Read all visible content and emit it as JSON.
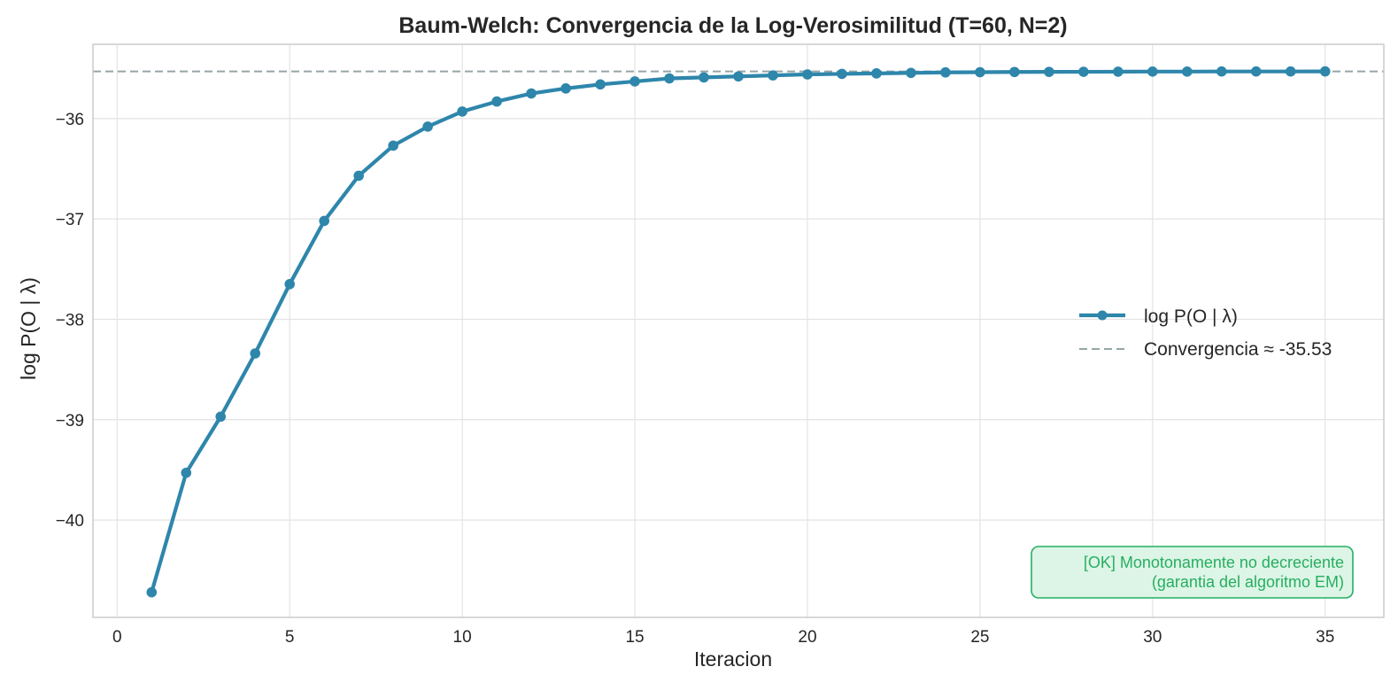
{
  "colors": {
    "series": "#2e86ab",
    "convergence_line": "#95a5a6",
    "annotation_text": "#27ae60",
    "annotation_bg": "#dcf5e6",
    "annotation_border": "#27ae60",
    "frame": "#cccccc",
    "grid": "#e3e3e3"
  },
  "chart_data": {
    "type": "line",
    "title": "Baum-Welch: Convergencia de la Log-Verosimilitud (T=60, N=2)",
    "xlabel": "Iteracion",
    "ylabel": "log P(O | λ)",
    "xlim": [
      -0.7,
      36.7
    ],
    "ylim": [
      -40.97,
      -35.26
    ],
    "xticks": [
      0,
      5,
      10,
      15,
      20,
      25,
      30,
      35
    ],
    "yticks": [
      -36,
      -37,
      -38,
      -39,
      -40
    ],
    "ytick_labels": [
      "−36",
      "−37",
      "−38",
      "−39",
      "−40"
    ],
    "grid": true,
    "legend_position": "center-right",
    "series": [
      {
        "name": "log P(O | λ)",
        "style": "line-with-markers",
        "x": [
          1,
          2,
          3,
          4,
          5,
          6,
          7,
          8,
          9,
          10,
          11,
          12,
          13,
          14,
          15,
          16,
          17,
          18,
          19,
          20,
          21,
          22,
          23,
          24,
          25,
          26,
          27,
          28,
          29,
          30,
          31,
          32,
          33,
          34,
          35
        ],
        "y": [
          -40.72,
          -39.53,
          -38.97,
          -38.34,
          -37.65,
          -37.02,
          -36.57,
          -36.27,
          -36.08,
          -35.93,
          -35.83,
          -35.75,
          -35.7,
          -35.66,
          -35.63,
          -35.6,
          -35.59,
          -35.58,
          -35.57,
          -35.56,
          -35.555,
          -35.55,
          -35.545,
          -35.54,
          -35.538,
          -35.536,
          -35.535,
          -35.534,
          -35.533,
          -35.532,
          -35.532,
          -35.531,
          -35.531,
          -35.531,
          -35.53
        ]
      }
    ],
    "reference_line": {
      "name": "Convergencia ≈ -35.53",
      "y": -35.53,
      "style": "dashed"
    },
    "annotation": {
      "line1": "[OK] Monotonamente no decreciente",
      "line2": "(garantia del algoritmo EM)",
      "position": "bottom-right"
    }
  }
}
